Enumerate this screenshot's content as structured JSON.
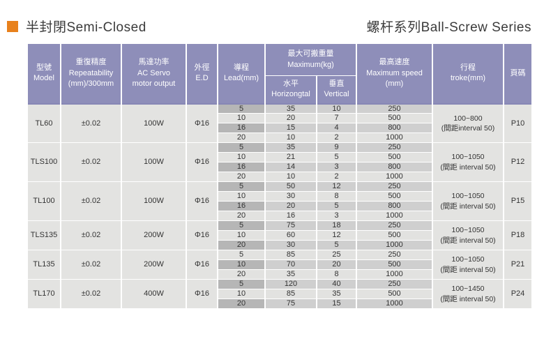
{
  "page": {
    "title_left": "半封閉Semi-Closed",
    "title_right": "螺杆系列Ball-Screw Series"
  },
  "colors": {
    "accent_orange": "#e8811c",
    "header_purple": "#8e8eb9",
    "row_light": "#e2e2e0",
    "row_dark": "#cfcfcf",
    "lead_dark": "#b6b6b6"
  },
  "table": {
    "headers": {
      "model_zh": "型號",
      "model_en": "Model",
      "repeat_zh": "重復精度",
      "repeat_en": "Repeatability",
      "repeat_unit": "(mm)/300mm",
      "motor_zh": "馬達功率",
      "motor_en1": "AC Servo",
      "motor_en2": "motor output",
      "ed_zh": "外徑",
      "ed_en": "E.D",
      "lead_zh": "導程",
      "lead_en": "Lead(mm)",
      "load_zh": "最大可搬重量",
      "load_en": "Maximum(kg)",
      "horiz_zh": "水平",
      "horiz_en": "Horizongtal",
      "vert_zh": "垂直",
      "vert_en": "Vertical",
      "speed_zh": "最高速度",
      "speed_en": "Maximum speed",
      "speed_unit": "(mm)",
      "stroke_zh": "行程",
      "stroke_en": "troke(mm)",
      "page_zh": "頁碼"
    },
    "groups": [
      {
        "model": "TL60",
        "repeatability": "±0.02",
        "motor": "100W",
        "ed": "Φ16",
        "stroke1": "100~800",
        "stroke2": "(間距interval 50)",
        "page": "P10",
        "rows": [
          {
            "lead": "5",
            "horizontal": "35",
            "vertical": "10",
            "speed": "250"
          },
          {
            "lead": "10",
            "horizontal": "20",
            "vertical": "7",
            "speed": "500"
          },
          {
            "lead": "16",
            "horizontal": "15",
            "vertical": "4",
            "speed": "800"
          },
          {
            "lead": "20",
            "horizontal": "10",
            "vertical": "2",
            "speed": "1000"
          }
        ]
      },
      {
        "model": "TLS100",
        "repeatability": "±0.02",
        "motor": "100W",
        "ed": "Φ16",
        "stroke1": "100~1050",
        "stroke2": "(間距 interval 50)",
        "page": "P12",
        "rows": [
          {
            "lead": "5",
            "horizontal": "35",
            "vertical": "9",
            "speed": "250"
          },
          {
            "lead": "10",
            "horizontal": "21",
            "vertical": "5",
            "speed": "500"
          },
          {
            "lead": "16",
            "horizontal": "14",
            "vertical": "3",
            "speed": "800"
          },
          {
            "lead": "20",
            "horizontal": "10",
            "vertical": "2",
            "speed": "1000"
          }
        ]
      },
      {
        "model": "TL100",
        "repeatability": "±0.02",
        "motor": "100W",
        "ed": "Φ16",
        "stroke1": "100~1050",
        "stroke2": "(間距 interval 50)",
        "page": "P15",
        "rows": [
          {
            "lead": "5",
            "horizontal": "50",
            "vertical": "12",
            "speed": "250"
          },
          {
            "lead": "10",
            "horizontal": "30",
            "vertical": "8",
            "speed": "500"
          },
          {
            "lead": "16",
            "horizontal": "20",
            "vertical": "5",
            "speed": "800"
          },
          {
            "lead": "20",
            "horizontal": "16",
            "vertical": "3",
            "speed": "1000"
          }
        ]
      },
      {
        "model": "TLS135",
        "repeatability": "±0.02",
        "motor": "200W",
        "ed": "Φ16",
        "stroke1": "100~1050",
        "stroke2": "(間距 interval 50)",
        "page": "P18",
        "rows": [
          {
            "lead": "5",
            "horizontal": "75",
            "vertical": "18",
            "speed": "250"
          },
          {
            "lead": "10",
            "horizontal": "60",
            "vertical": "12",
            "speed": "500"
          },
          {
            "lead": "20",
            "horizontal": "30",
            "vertical": "5",
            "speed": "1000"
          }
        ]
      },
      {
        "model": "TL135",
        "repeatability": "±0.02",
        "motor": "200W",
        "ed": "Φ16",
        "stroke1": "100~1050",
        "stroke2": "(間距 interval 50)",
        "page": "P21",
        "rows": [
          {
            "lead": "5",
            "horizontal": "85",
            "vertical": "25",
            "speed": "250"
          },
          {
            "lead": "10",
            "horizontal": "70",
            "vertical": "20",
            "speed": "500"
          },
          {
            "lead": "20",
            "horizontal": "35",
            "vertical": "8",
            "speed": "1000"
          }
        ]
      },
      {
        "model": "TL170",
        "repeatability": "±0.02",
        "motor": "400W",
        "ed": "Φ16",
        "stroke1": "100~1450",
        "stroke2": "(間距 interval 50)",
        "page": "P24",
        "rows": [
          {
            "lead": "5",
            "horizontal": "120",
            "vertical": "40",
            "speed": "250"
          },
          {
            "lead": "10",
            "horizontal": "85",
            "vertical": "35",
            "speed": "500"
          },
          {
            "lead": "20",
            "horizontal": "75",
            "vertical": "15",
            "speed": "1000"
          }
        ]
      }
    ]
  }
}
